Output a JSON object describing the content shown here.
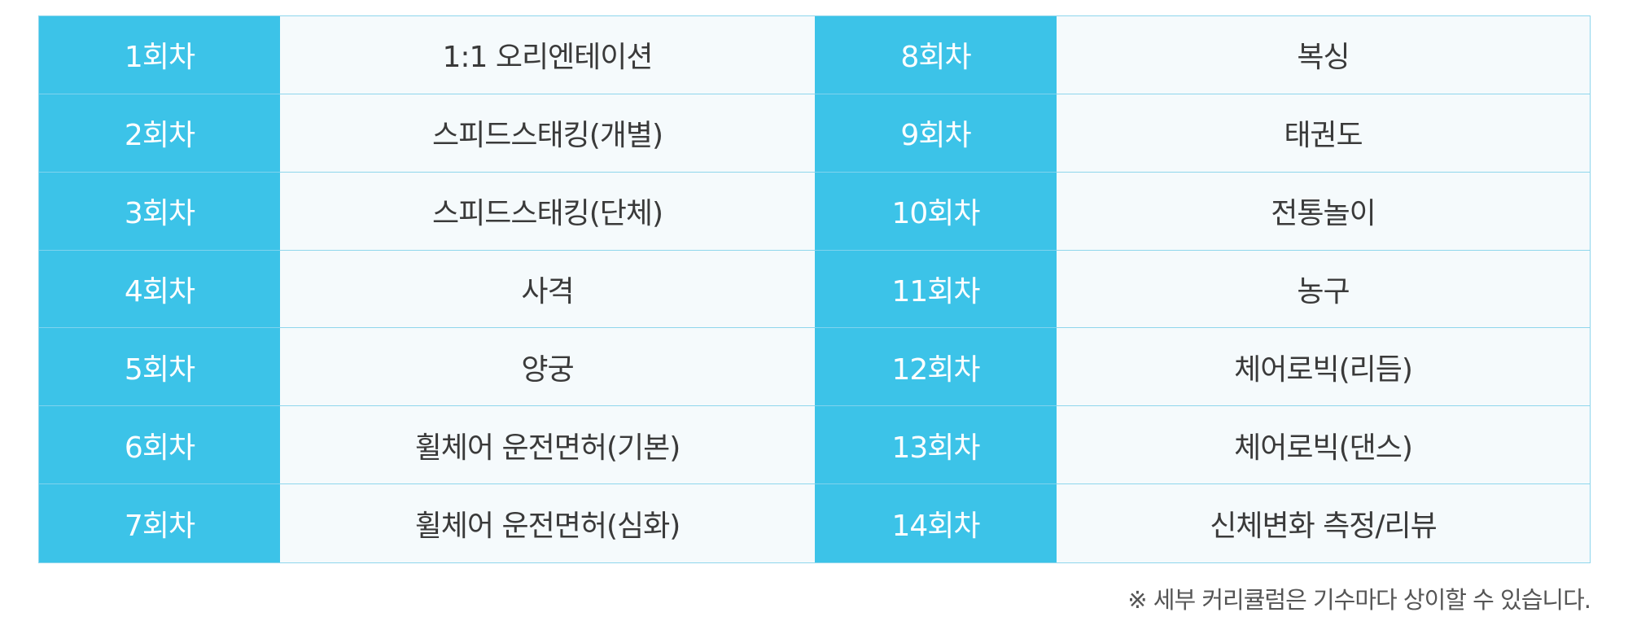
{
  "rows": [
    {
      "left": {
        "session": "1회차",
        "topic": "1:1 오리엔테이션"
      },
      "right": {
        "session": "8회차",
        "topic": "복싱"
      }
    },
    {
      "left": {
        "session": "2회차",
        "topic": "스피드스태킹(개별)"
      },
      "right": {
        "session": "9회차",
        "topic": "태권도"
      }
    },
    {
      "left": {
        "session": "3회차",
        "topic": "스피드스태킹(단체)"
      },
      "right": {
        "session": "10회차",
        "topic": "전통놀이"
      }
    },
    {
      "left": {
        "session": "4회차",
        "topic": "사격"
      },
      "right": {
        "session": "11회차",
        "topic": "농구"
      }
    },
    {
      "left": {
        "session": "5회차",
        "topic": "양궁"
      },
      "right": {
        "session": "12회차",
        "topic": "체어로빅(리듬)"
      }
    },
    {
      "left": {
        "session": "6회차",
        "topic": "휠체어 운전면허(기본)"
      },
      "right": {
        "session": "13회차",
        "topic": "체어로빅(댄스)"
      }
    },
    {
      "left": {
        "session": "7회차",
        "topic": "휠체어 운전면허(심화)"
      },
      "right": {
        "session": "14회차",
        "topic": "신체변화 측정/리뷰"
      }
    }
  ],
  "footnote": "※ 세부 커리큘럼은 기수마다 상이할 수 있습니다.",
  "colors": {
    "label_bg": "#3cc3e8",
    "cell_bg": "#f5fafc",
    "border": "#8fd6ec",
    "text": "#3a3a3a"
  }
}
